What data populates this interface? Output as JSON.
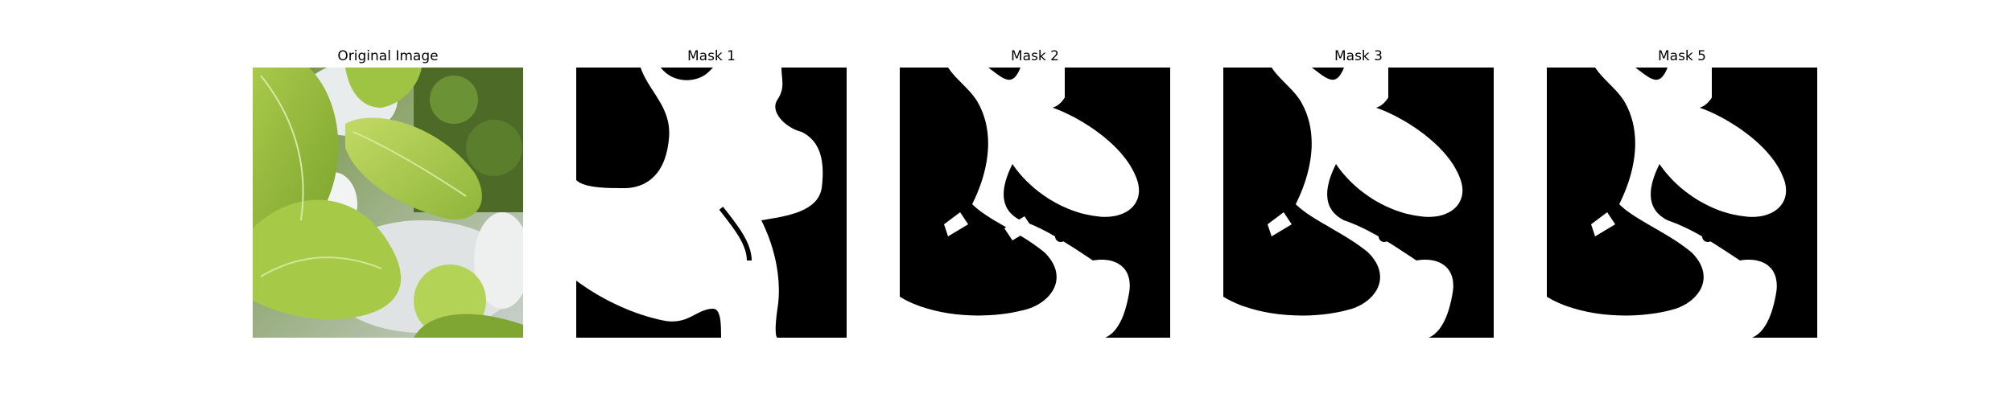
{
  "panels": [
    {
      "title": "Original Image"
    },
    {
      "title": "Mask 1"
    },
    {
      "title": "Mask 2"
    },
    {
      "title": "Mask 3"
    },
    {
      "title": "Mask 5"
    }
  ],
  "colors": {
    "background": "#ffffff",
    "mask_bg": "#000000",
    "mask_fg": "#ffffff",
    "leaf_light": "#b5d24e",
    "leaf_mid": "#93b936",
    "leaf_dark": "#5e8522",
    "pot_white": "#e8eaea",
    "shadow": "#3d4a2a"
  }
}
